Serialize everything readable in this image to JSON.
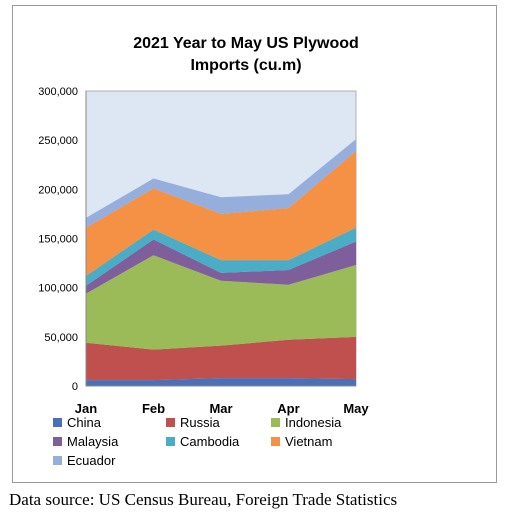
{
  "chart_data": {
    "type": "area",
    "stacked": true,
    "title_lines": [
      "2021 Year to May US Plywood",
      "Imports (cu.m)"
    ],
    "categories": [
      "Jan",
      "Feb",
      "Mar",
      "Apr",
      "May"
    ],
    "ylim": [
      0,
      300000
    ],
    "y_ticks": [
      0,
      50000,
      100000,
      150000,
      200000,
      250000,
      300000
    ],
    "y_tick_labels": [
      "0",
      "50,000",
      "100,000",
      "150,000",
      "200,000",
      "250,000",
      "300,000"
    ],
    "grid": false,
    "legend_position": "bottom",
    "series": [
      {
        "name": "China",
        "color": "#4a70b8",
        "values": [
          6000,
          6000,
          8000,
          8000,
          7000
        ]
      },
      {
        "name": "Russia",
        "color": "#c0504d",
        "values": [
          38000,
          31000,
          33000,
          39000,
          43000
        ]
      },
      {
        "name": "Indonesia",
        "color": "#9bbb59",
        "values": [
          50000,
          96000,
          66000,
          56000,
          73000
        ]
      },
      {
        "name": "Malaysia",
        "color": "#7f5f9b",
        "values": [
          8000,
          16000,
          8000,
          15000,
          24000
        ]
      },
      {
        "name": "Cambodia",
        "color": "#4bacc6",
        "values": [
          10000,
          10000,
          13000,
          10000,
          14000
        ]
      },
      {
        "name": "Vietnam",
        "color": "#f59145",
        "values": [
          49000,
          42000,
          47000,
          53000,
          78000
        ]
      },
      {
        "name": "Ecuador",
        "color": "#95aedb",
        "values": [
          10000,
          10000,
          17000,
          14000,
          12000
        ]
      }
    ],
    "plot_background": "#dde6f3"
  },
  "source_note": "Data source: US Census Bureau, Foreign Trade Statistics"
}
